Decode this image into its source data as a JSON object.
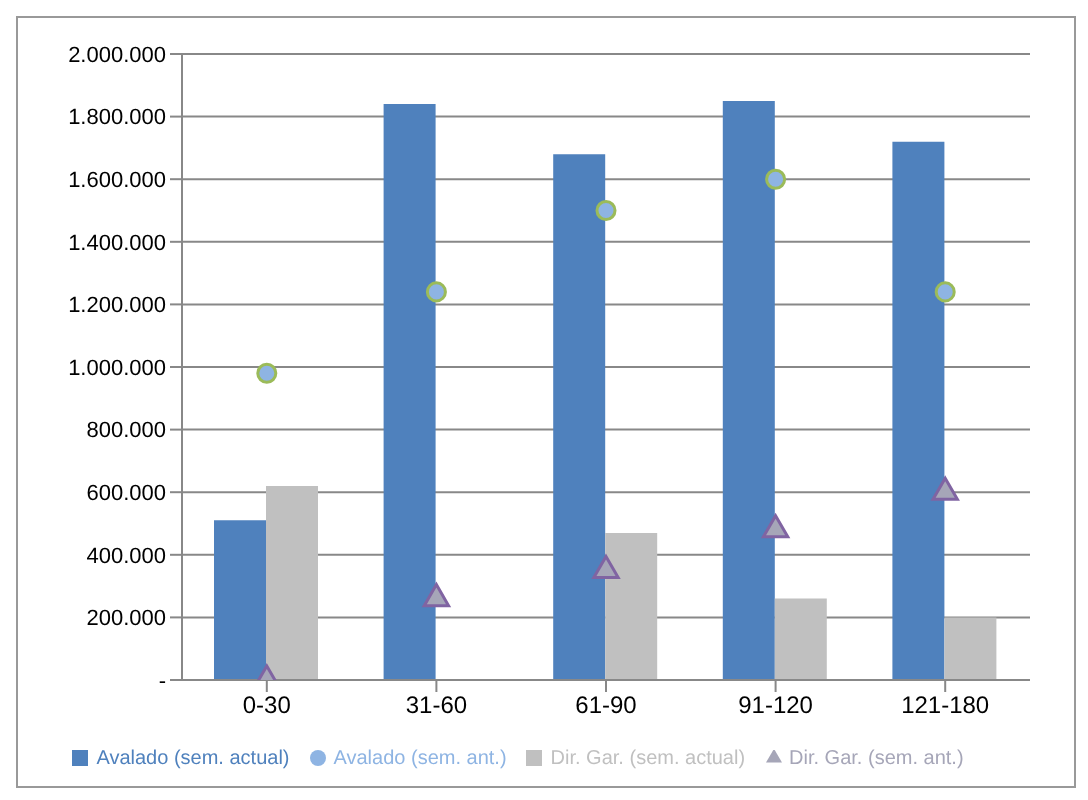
{
  "chart_data": {
    "type": "bar",
    "categories": [
      "0-30",
      "31-60",
      "61-90",
      "91-120",
      "121-180"
    ],
    "series": [
      {
        "name": "Avalado (sem. actual)",
        "color": "#4f81bd",
        "values": [
          510000,
          1840000,
          1680000,
          1850000,
          1720000
        ]
      },
      {
        "name": "Dir. Gar. (sem. actual)",
        "color": "#c0c0c0",
        "values": [
          620000,
          0,
          470000,
          260000,
          200000
        ]
      },
      {
        "name": "Avalado (sem. ant.)",
        "type": "scatter",
        "marker": "circle",
        "color": "#8eb4e3",
        "values": [
          980000,
          1240000,
          1500000,
          1600000,
          1240000
        ]
      },
      {
        "name": "Dir. Gar. (sem. ant.)",
        "type": "scatter",
        "marker": "triangle",
        "color": "#8064a2",
        "values": [
          0,
          260000,
          350000,
          480000,
          600000
        ]
      }
    ],
    "ylim": [
      0,
      2000000
    ],
    "yticks": [
      {
        "value": 0,
        "label": "-"
      },
      {
        "value": 200000,
        "label": "200.000"
      },
      {
        "value": 400000,
        "label": "400.000"
      },
      {
        "value": 600000,
        "label": "600.000"
      },
      {
        "value": 800000,
        "label": "800.000"
      },
      {
        "value": 1000000,
        "label": "1.000.000"
      },
      {
        "value": 1200000,
        "label": "1.200.000"
      },
      {
        "value": 1400000,
        "label": "1.400.000"
      },
      {
        "value": 1600000,
        "label": "1.600.000"
      },
      {
        "value": 1800000,
        "label": "1.800.000"
      },
      {
        "value": 2000000,
        "label": "2.000.000"
      }
    ],
    "grid": "y",
    "legend": "bottom"
  }
}
